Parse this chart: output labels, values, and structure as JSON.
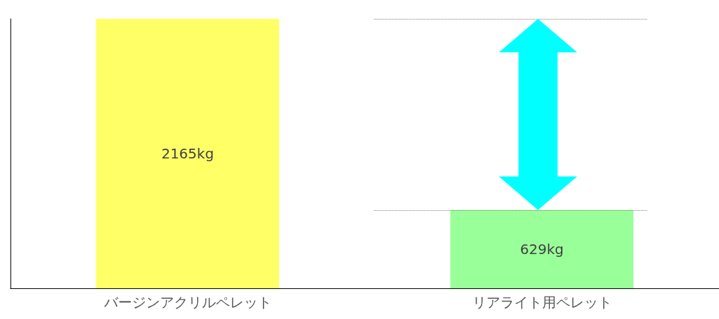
{
  "chart_data": {
    "type": "bar",
    "categories": [
      "バージンアクリルペレット",
      "リアライト用ペレット"
    ],
    "values": [
      2165,
      629
    ],
    "colors": [
      "#ffff66",
      "#99ff99"
    ],
    "value_labels": [
      "2165kg",
      "629kg"
    ],
    "grid": false,
    "ref_lines": [
      {
        "axis": "y",
        "value": 2165,
        "line_style": "dotted",
        "color": "#7f7f7f"
      },
      {
        "axis": "y",
        "value": 629,
        "line_style": "dotted",
        "color": "#7f7f7f"
      }
    ]
  }
}
